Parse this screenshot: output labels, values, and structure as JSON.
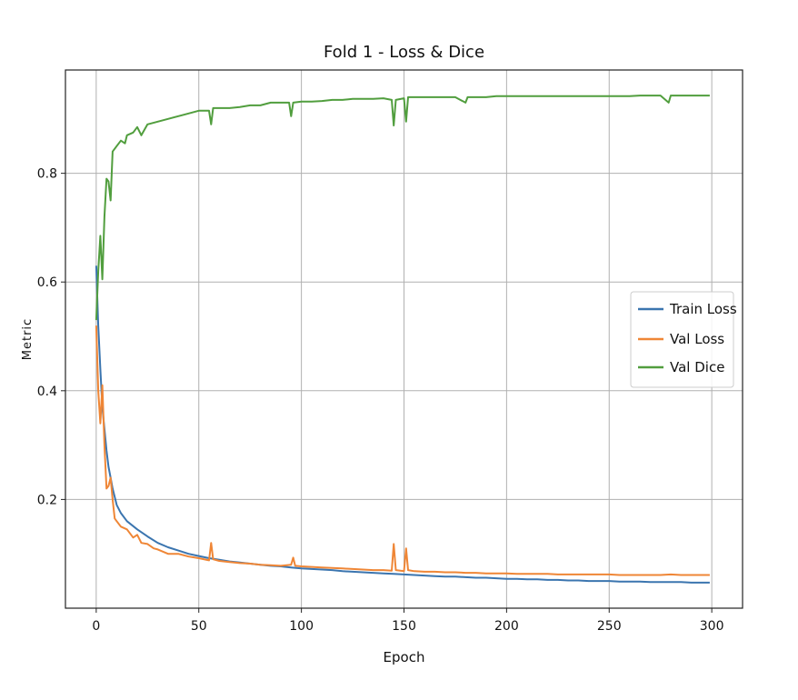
{
  "chart_data": {
    "type": "line",
    "title": "Fold 1 - Loss & Dice",
    "xlabel": "Epoch",
    "ylabel": "Metric",
    "xlim": [
      -15,
      315
    ],
    "ylim": [
      0.0,
      0.99
    ],
    "xticks": [
      0,
      50,
      100,
      150,
      200,
      250,
      300
    ],
    "yticks": [
      0.2,
      0.4,
      0.6,
      0.8
    ],
    "ytick_labels": [
      "0.2",
      "0.4",
      "0.6",
      "0.8"
    ],
    "grid": true,
    "legend_position": "center-right",
    "series": [
      {
        "name": "Train Loss",
        "color": "#3b75af",
        "points": [
          [
            0,
            0.63
          ],
          [
            1,
            0.52
          ],
          [
            2,
            0.44
          ],
          [
            3,
            0.37
          ],
          [
            4,
            0.33
          ],
          [
            5,
            0.29
          ],
          [
            6,
            0.26
          ],
          [
            7,
            0.24
          ],
          [
            8,
            0.22
          ],
          [
            10,
            0.19
          ],
          [
            12,
            0.175
          ],
          [
            15,
            0.16
          ],
          [
            20,
            0.145
          ],
          [
            25,
            0.132
          ],
          [
            30,
            0.12
          ],
          [
            35,
            0.112
          ],
          [
            40,
            0.106
          ],
          [
            45,
            0.1
          ],
          [
            50,
            0.096
          ],
          [
            55,
            0.092
          ],
          [
            60,
            0.089
          ],
          [
            65,
            0.086
          ],
          [
            70,
            0.084
          ],
          [
            75,
            0.082
          ],
          [
            80,
            0.08
          ],
          [
            85,
            0.078
          ],
          [
            90,
            0.077
          ],
          [
            95,
            0.075
          ],
          [
            100,
            0.073
          ],
          [
            105,
            0.072
          ],
          [
            110,
            0.071
          ],
          [
            115,
            0.07
          ],
          [
            120,
            0.068
          ],
          [
            125,
            0.067
          ],
          [
            130,
            0.066
          ],
          [
            135,
            0.065
          ],
          [
            140,
            0.064
          ],
          [
            145,
            0.063
          ],
          [
            150,
            0.062
          ],
          [
            155,
            0.061
          ],
          [
            160,
            0.06
          ],
          [
            165,
            0.059
          ],
          [
            170,
            0.058
          ],
          [
            175,
            0.058
          ],
          [
            180,
            0.057
          ],
          [
            185,
            0.056
          ],
          [
            190,
            0.056
          ],
          [
            195,
            0.055
          ],
          [
            200,
            0.054
          ],
          [
            205,
            0.054
          ],
          [
            210,
            0.053
          ],
          [
            215,
            0.053
          ],
          [
            220,
            0.052
          ],
          [
            225,
            0.052
          ],
          [
            230,
            0.051
          ],
          [
            235,
            0.051
          ],
          [
            240,
            0.05
          ],
          [
            245,
            0.05
          ],
          [
            250,
            0.05
          ],
          [
            255,
            0.049
          ],
          [
            260,
            0.049
          ],
          [
            265,
            0.049
          ],
          [
            270,
            0.048
          ],
          [
            275,
            0.048
          ],
          [
            280,
            0.048
          ],
          [
            285,
            0.048
          ],
          [
            290,
            0.047
          ],
          [
            295,
            0.047
          ],
          [
            299,
            0.047
          ]
        ]
      },
      {
        "name": "Val Loss",
        "color": "#ef8636",
        "points": [
          [
            0,
            0.52
          ],
          [
            1,
            0.4
          ],
          [
            2,
            0.34
          ],
          [
            3,
            0.41
          ],
          [
            4,
            0.3
          ],
          [
            5,
            0.22
          ],
          [
            6,
            0.225
          ],
          [
            7,
            0.24
          ],
          [
            8,
            0.2
          ],
          [
            9,
            0.165
          ],
          [
            10,
            0.16
          ],
          [
            12,
            0.15
          ],
          [
            15,
            0.145
          ],
          [
            18,
            0.13
          ],
          [
            20,
            0.135
          ],
          [
            22,
            0.12
          ],
          [
            25,
            0.118
          ],
          [
            28,
            0.11
          ],
          [
            30,
            0.108
          ],
          [
            35,
            0.1
          ],
          [
            40,
            0.1
          ],
          [
            45,
            0.095
          ],
          [
            50,
            0.092
          ],
          [
            55,
            0.088
          ],
          [
            56,
            0.12
          ],
          [
            57,
            0.09
          ],
          [
            60,
            0.087
          ],
          [
            65,
            0.085
          ],
          [
            70,
            0.083
          ],
          [
            75,
            0.082
          ],
          [
            80,
            0.08
          ],
          [
            85,
            0.079
          ],
          [
            90,
            0.078
          ],
          [
            95,
            0.08
          ],
          [
            96,
            0.093
          ],
          [
            97,
            0.078
          ],
          [
            100,
            0.077
          ],
          [
            105,
            0.076
          ],
          [
            110,
            0.075
          ],
          [
            115,
            0.074
          ],
          [
            120,
            0.073
          ],
          [
            125,
            0.072
          ],
          [
            130,
            0.071
          ],
          [
            135,
            0.07
          ],
          [
            140,
            0.07
          ],
          [
            144,
            0.069
          ],
          [
            145,
            0.118
          ],
          [
            146,
            0.07
          ],
          [
            150,
            0.068
          ],
          [
            151,
            0.11
          ],
          [
            152,
            0.07
          ],
          [
            155,
            0.068
          ],
          [
            160,
            0.067
          ],
          [
            165,
            0.067
          ],
          [
            170,
            0.066
          ],
          [
            175,
            0.066
          ],
          [
            180,
            0.065
          ],
          [
            185,
            0.065
          ],
          [
            190,
            0.064
          ],
          [
            195,
            0.064
          ],
          [
            200,
            0.064
          ],
          [
            205,
            0.063
          ],
          [
            210,
            0.063
          ],
          [
            215,
            0.063
          ],
          [
            220,
            0.063
          ],
          [
            225,
            0.062
          ],
          [
            230,
            0.062
          ],
          [
            235,
            0.062
          ],
          [
            240,
            0.062
          ],
          [
            245,
            0.062
          ],
          [
            250,
            0.062
          ],
          [
            255,
            0.061
          ],
          [
            260,
            0.061
          ],
          [
            265,
            0.061
          ],
          [
            270,
            0.061
          ],
          [
            275,
            0.061
          ],
          [
            280,
            0.062
          ],
          [
            285,
            0.061
          ],
          [
            290,
            0.061
          ],
          [
            295,
            0.061
          ],
          [
            299,
            0.061
          ]
        ]
      },
      {
        "name": "Val Dice",
        "color": "#519e3e",
        "points": [
          [
            0,
            0.53
          ],
          [
            1,
            0.62
          ],
          [
            2,
            0.685
          ],
          [
            3,
            0.605
          ],
          [
            4,
            0.72
          ],
          [
            5,
            0.79
          ],
          [
            6,
            0.785
          ],
          [
            7,
            0.75
          ],
          [
            8,
            0.84
          ],
          [
            10,
            0.85
          ],
          [
            12,
            0.86
          ],
          [
            14,
            0.855
          ],
          [
            15,
            0.87
          ],
          [
            18,
            0.875
          ],
          [
            20,
            0.885
          ],
          [
            22,
            0.87
          ],
          [
            25,
            0.89
          ],
          [
            30,
            0.895
          ],
          [
            35,
            0.9
          ],
          [
            40,
            0.905
          ],
          [
            45,
            0.91
          ],
          [
            50,
            0.915
          ],
          [
            55,
            0.915
          ],
          [
            56,
            0.89
          ],
          [
            57,
            0.92
          ],
          [
            60,
            0.92
          ],
          [
            65,
            0.92
          ],
          [
            70,
            0.922
          ],
          [
            75,
            0.925
          ],
          [
            80,
            0.925
          ],
          [
            85,
            0.93
          ],
          [
            90,
            0.93
          ],
          [
            94,
            0.93
          ],
          [
            95,
            0.905
          ],
          [
            96,
            0.93
          ],
          [
            100,
            0.932
          ],
          [
            105,
            0.932
          ],
          [
            110,
            0.933
          ],
          [
            115,
            0.935
          ],
          [
            120,
            0.935
          ],
          [
            125,
            0.937
          ],
          [
            130,
            0.937
          ],
          [
            135,
            0.937
          ],
          [
            140,
            0.938
          ],
          [
            144,
            0.935
          ],
          [
            145,
            0.888
          ],
          [
            146,
            0.935
          ],
          [
            150,
            0.938
          ],
          [
            151,
            0.895
          ],
          [
            152,
            0.94
          ],
          [
            155,
            0.94
          ],
          [
            160,
            0.94
          ],
          [
            165,
            0.94
          ],
          [
            170,
            0.94
          ],
          [
            175,
            0.94
          ],
          [
            180,
            0.93
          ],
          [
            181,
            0.94
          ],
          [
            185,
            0.94
          ],
          [
            190,
            0.94
          ],
          [
            195,
            0.942
          ],
          [
            200,
            0.942
          ],
          [
            205,
            0.942
          ],
          [
            210,
            0.942
          ],
          [
            215,
            0.942
          ],
          [
            220,
            0.942
          ],
          [
            225,
            0.942
          ],
          [
            230,
            0.942
          ],
          [
            235,
            0.942
          ],
          [
            240,
            0.942
          ],
          [
            245,
            0.942
          ],
          [
            250,
            0.942
          ],
          [
            255,
            0.942
          ],
          [
            260,
            0.942
          ],
          [
            265,
            0.943
          ],
          [
            270,
            0.943
          ],
          [
            275,
            0.943
          ],
          [
            279,
            0.93
          ],
          [
            280,
            0.943
          ],
          [
            285,
            0.943
          ],
          [
            290,
            0.943
          ],
          [
            295,
            0.943
          ],
          [
            299,
            0.943
          ]
        ]
      }
    ]
  }
}
